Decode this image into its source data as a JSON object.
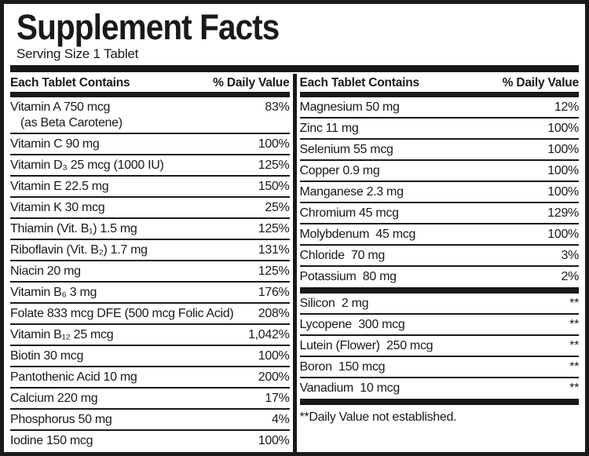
{
  "label": {
    "title": "Supplement Facts",
    "serving": "Serving Size 1 Tablet",
    "column_header": {
      "name": "Each Tablet Contains",
      "dv": "% Daily Value"
    },
    "left_rows": [
      {
        "name": "Vitamin A 750 mcg",
        "name2": "(as Beta Carotene)",
        "dv": "83%"
      },
      {
        "name": "Vitamin C 90 mg",
        "dv": "100%"
      },
      {
        "name": "Vitamin D₃ 25 mcg (1000 IU)",
        "dv": "125%"
      },
      {
        "name": "Vitamin E 22.5 mg",
        "dv": "150%"
      },
      {
        "name": "Vitamin K 30 mcg",
        "dv": "25%"
      },
      {
        "name": "Thiamin (Vit. B₁) 1.5 mg",
        "dv": "125%"
      },
      {
        "name": "Riboflavin (Vit. B₂) 1.7 mg",
        "dv": "131%"
      },
      {
        "name": "Niacin 20 mg",
        "dv": "125%"
      },
      {
        "name": "Vitamin B₆ 3 mg",
        "dv": "176%"
      },
      {
        "name": "Folate 833 mcg DFE (500 mcg Folic Acid)",
        "dv": "208%"
      },
      {
        "name": "Vitamin B₁₂ 25 mcg",
        "dv": "1,042%"
      },
      {
        "name": "Biotin 30 mcg",
        "dv": "100%"
      },
      {
        "name": "Pantothenic Acid 10 mg",
        "dv": "200%"
      },
      {
        "name": "Calcium 220 mg",
        "dv": "17%"
      },
      {
        "name": "Phosphorus 50 mg",
        "dv": "4%"
      },
      {
        "name": "Iodine 150 mcg",
        "dv": "100%"
      }
    ],
    "right_main_rows": [
      {
        "name": "Magnesium 50 mg",
        "dv": "12%"
      },
      {
        "name": "Zinc 11 mg",
        "dv": "100%"
      },
      {
        "name": "Selenium 55 mcg",
        "dv": "100%"
      },
      {
        "name": "Copper 0.9 mg",
        "dv": "100%"
      },
      {
        "name": "Manganese 2.3 mg",
        "dv": "100%"
      },
      {
        "name": "Chromium 45 mcg",
        "dv": "129%"
      },
      {
        "name": "Molybdenum  45 mcg",
        "dv": "100%"
      },
      {
        "name": "Chloride  70 mg",
        "dv": "3%"
      },
      {
        "name": "Potassium  80 mg",
        "dv": "2%"
      }
    ],
    "right_nodv_rows": [
      {
        "name": "Silicon  2 mg",
        "dv": "**"
      },
      {
        "name": "Lycopene  300 mcg",
        "dv": "**"
      },
      {
        "name": "Lutein (Flower)  250 mcg",
        "dv": "**"
      },
      {
        "name": "Boron  150 mcg",
        "dv": "**"
      },
      {
        "name": "Vanadium  10 mcg",
        "dv": "**"
      }
    ],
    "footnote": "**Daily Value not established.",
    "colors": {
      "ink": "#1b1918",
      "bg": "#ffffff"
    }
  }
}
